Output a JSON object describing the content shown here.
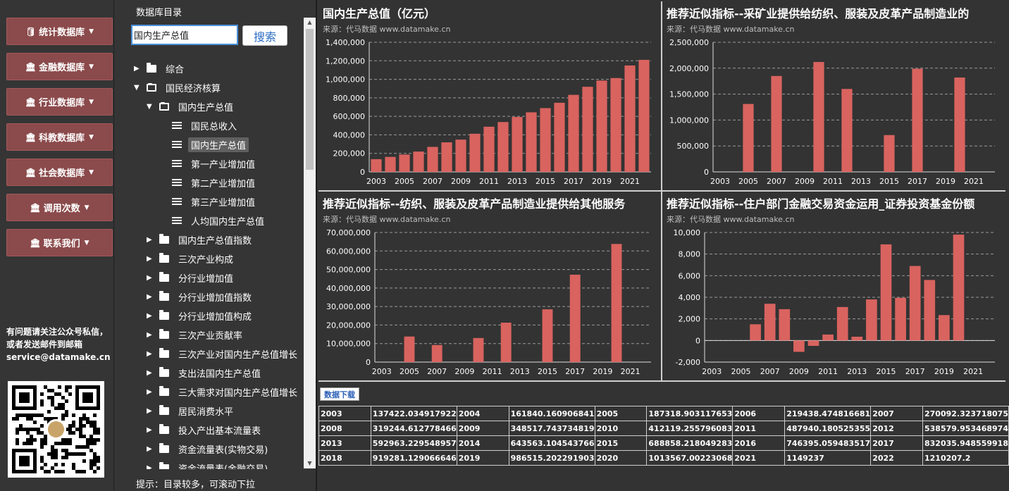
{
  "nav": {
    "items": [
      {
        "label": "统计数据库",
        "icon": "database-icon"
      },
      {
        "label": "金融数据库",
        "icon": "bank-icon"
      },
      {
        "label": "行业数据库",
        "icon": "bank-icon"
      },
      {
        "label": "科教数据库",
        "icon": "bank-icon"
      },
      {
        "label": "社会数据库",
        "icon": "bank-icon"
      },
      {
        "label": "调用次数",
        "icon": "bank-icon"
      },
      {
        "label": "联系我们",
        "icon": "bank-icon"
      }
    ],
    "contact": "有问题请关注公众号私信，或者发送邮件到邮箱service@datamake.cn"
  },
  "tree": {
    "title": "数据库目录",
    "search_value": "国内生产总值",
    "search_button": "搜索",
    "hint": "提示：目录较多，可滚动下拉",
    "nodes": [
      {
        "label": "综合",
        "level": 0,
        "type": "folder",
        "open": false
      },
      {
        "label": "国民经济核算",
        "level": 0,
        "type": "folder",
        "open": true
      },
      {
        "label": "国内生产总值",
        "level": 1,
        "type": "folder",
        "open": true
      },
      {
        "label": "国民总收入",
        "level": 2,
        "type": "leaf"
      },
      {
        "label": "国内生产总值",
        "level": 2,
        "type": "leaf",
        "selected": true
      },
      {
        "label": "第一产业增加值",
        "level": 2,
        "type": "leaf"
      },
      {
        "label": "第二产业增加值",
        "level": 2,
        "type": "leaf"
      },
      {
        "label": "第三产业增加值",
        "level": 2,
        "type": "leaf"
      },
      {
        "label": "人均国内生产总值",
        "level": 2,
        "type": "leaf"
      },
      {
        "label": "国内生产总值指数",
        "level": 1,
        "type": "folder",
        "open": false
      },
      {
        "label": "三次产业构成",
        "level": 1,
        "type": "folder",
        "open": false
      },
      {
        "label": "分行业增加值",
        "level": 1,
        "type": "folder",
        "open": false
      },
      {
        "label": "分行业增加值指数",
        "level": 1,
        "type": "folder",
        "open": false
      },
      {
        "label": "分行业增加值构成",
        "level": 1,
        "type": "folder",
        "open": false
      },
      {
        "label": "三次产业贡献率",
        "level": 1,
        "type": "folder",
        "open": false
      },
      {
        "label": "三次产业对国内生产总值增长",
        "level": 1,
        "type": "folder",
        "open": false
      },
      {
        "label": "支出法国内生产总值",
        "level": 1,
        "type": "folder",
        "open": false
      },
      {
        "label": "三大需求对国内生产总值增长",
        "level": 1,
        "type": "folder",
        "open": false
      },
      {
        "label": "居民消费水平",
        "level": 1,
        "type": "folder",
        "open": false
      },
      {
        "label": "投入产出基本流量表",
        "level": 1,
        "type": "folder",
        "open": false
      },
      {
        "label": "资金流量表(实物交易)",
        "level": 1,
        "type": "folder",
        "open": false
      },
      {
        "label": "资金流量表(金融交易)",
        "level": 1,
        "type": "folder",
        "open": false
      }
    ]
  },
  "colors": {
    "bar": "#d9635f",
    "grid": "#9a9a9a",
    "panel": "#333333",
    "nav_button": "#8b4a4b"
  },
  "chart_data": [
    {
      "type": "bar",
      "title": "国内生产总值（亿元）",
      "source": "来源：代马数据 www.datamake.cn",
      "x": [
        2003,
        2004,
        2005,
        2006,
        2007,
        2008,
        2009,
        2010,
        2011,
        2012,
        2013,
        2014,
        2015,
        2016,
        2017,
        2018,
        2019,
        2020,
        2021,
        2022
      ],
      "values": [
        137422.03,
        161840.16,
        187318.9,
        219438.47,
        270092.32,
        319244.61,
        348517.74,
        412119.26,
        487940.18,
        538579.95,
        592963.23,
        643563.1,
        688858.22,
        746395.06,
        832035.95,
        919281.13,
        986515.2,
        1013567.0,
        1149237,
        1210207.2
      ],
      "ylim": [
        0,
        1400000
      ],
      "yticks": [
        "0",
        "200,000",
        "400,000",
        "600,000",
        "800,000",
        "1,000,000",
        "1,200,000",
        "1,400,000"
      ],
      "xticks": [
        "2003",
        "2005",
        "2007",
        "2009",
        "2011",
        "2013",
        "2015",
        "2017",
        "2019",
        "2021"
      ]
    },
    {
      "type": "bar",
      "title": "推荐近似指标--采矿业提供给纺织、服装及皮革产品制造业的",
      "source": "来源：代马数据 www.datamake.cn",
      "x": [
        2003,
        2004,
        2005,
        2006,
        2007,
        2008,
        2009,
        2010,
        2011,
        2012,
        2013,
        2014,
        2015,
        2016,
        2017,
        2018,
        2019,
        2020,
        2021,
        2022
      ],
      "values": [
        null,
        null,
        1310000,
        null,
        1850000,
        null,
        null,
        2120000,
        null,
        1600000,
        null,
        null,
        710000,
        null,
        1990000,
        null,
        null,
        1820000,
        null,
        null
      ],
      "ylim": [
        0,
        2500000
      ],
      "yticks": [
        "0",
        "500,000",
        "1,000,000",
        "1,500,000",
        "2,000,000",
        "2,500,000"
      ],
      "xticks": [
        "2003",
        "2005",
        "2007",
        "2009",
        "2011",
        "2013",
        "2015",
        "2017",
        "2019",
        "2021"
      ]
    },
    {
      "type": "bar",
      "title": "推荐近似指标--纺织、服装及皮革产品制造业提供给其他服务",
      "source": "来源：代马数据 www.datamake.cn",
      "x": [
        2003,
        2004,
        2005,
        2006,
        2007,
        2008,
        2009,
        2010,
        2011,
        2012,
        2013,
        2014,
        2015,
        2016,
        2017,
        2018,
        2019,
        2020,
        2021,
        2022
      ],
      "values": [
        null,
        null,
        13800000,
        null,
        9200000,
        null,
        null,
        13000000,
        null,
        21300000,
        null,
        null,
        28500000,
        null,
        47200000,
        null,
        null,
        63800000,
        null,
        null
      ],
      "ylim": [
        0,
        70000000
      ],
      "yticks": [
        "0",
        "10,000,000",
        "20,000,000",
        "30,000,000",
        "40,000,000",
        "50,000,000",
        "60,000,000",
        "70,000,000"
      ],
      "xticks": [
        "2003",
        "2005",
        "2007",
        "2009",
        "2011",
        "2013",
        "2015",
        "2017",
        "2019",
        "2021"
      ]
    },
    {
      "type": "bar",
      "title": "推荐近似指标--住户部门金融交易资金运用_证券投资基金份额",
      "source": "来源：代马数据 www.datamake.cn",
      "x": [
        2003,
        2004,
        2005,
        2006,
        2007,
        2008,
        2009,
        2010,
        2011,
        2012,
        2013,
        2014,
        2015,
        2016,
        2017,
        2018,
        2019,
        2020,
        2021,
        2022
      ],
      "values": [
        null,
        null,
        null,
        1500,
        3400,
        2900,
        -1050,
        -500,
        550,
        3100,
        350,
        3800,
        8900,
        3950,
        6900,
        5600,
        2350,
        9800,
        null,
        null
      ],
      "ylim": [
        -2000,
        10000
      ],
      "yticks": [
        "-2,000",
        "0",
        "2,000",
        "4,000",
        "6,000",
        "8,000",
        "10,000"
      ],
      "xticks": [
        "2003",
        "2005",
        "2007",
        "2009",
        "2011",
        "2013",
        "2015",
        "2017",
        "2019",
        "2021"
      ]
    }
  ],
  "table": {
    "download_label": "数据下载",
    "rows": [
      [
        "2003",
        "137422.034917922",
        "2004",
        "161840.160906841",
        "2005",
        "187318.903117653",
        "2006",
        "219438.474816681",
        "2007",
        "270092.323718075"
      ],
      [
        "2008",
        "319244.612778466",
        "2009",
        "348517.743734819",
        "2010",
        "412119.255796083",
        "2011",
        "487940.180525355",
        "2012",
        "538579.953468974"
      ],
      [
        "2013",
        "592963.229548957",
        "2014",
        "643563.104543766",
        "2015",
        "688858.218049283",
        "2016",
        "746395.059483517",
        "2017",
        "832035.948559918"
      ],
      [
        "2018",
        "919281.129066646",
        "2019",
        "986515.202291903",
        "2020",
        "1013567.00223068",
        "2021",
        "1149237",
        "2022",
        "1210207.2"
      ]
    ]
  }
}
